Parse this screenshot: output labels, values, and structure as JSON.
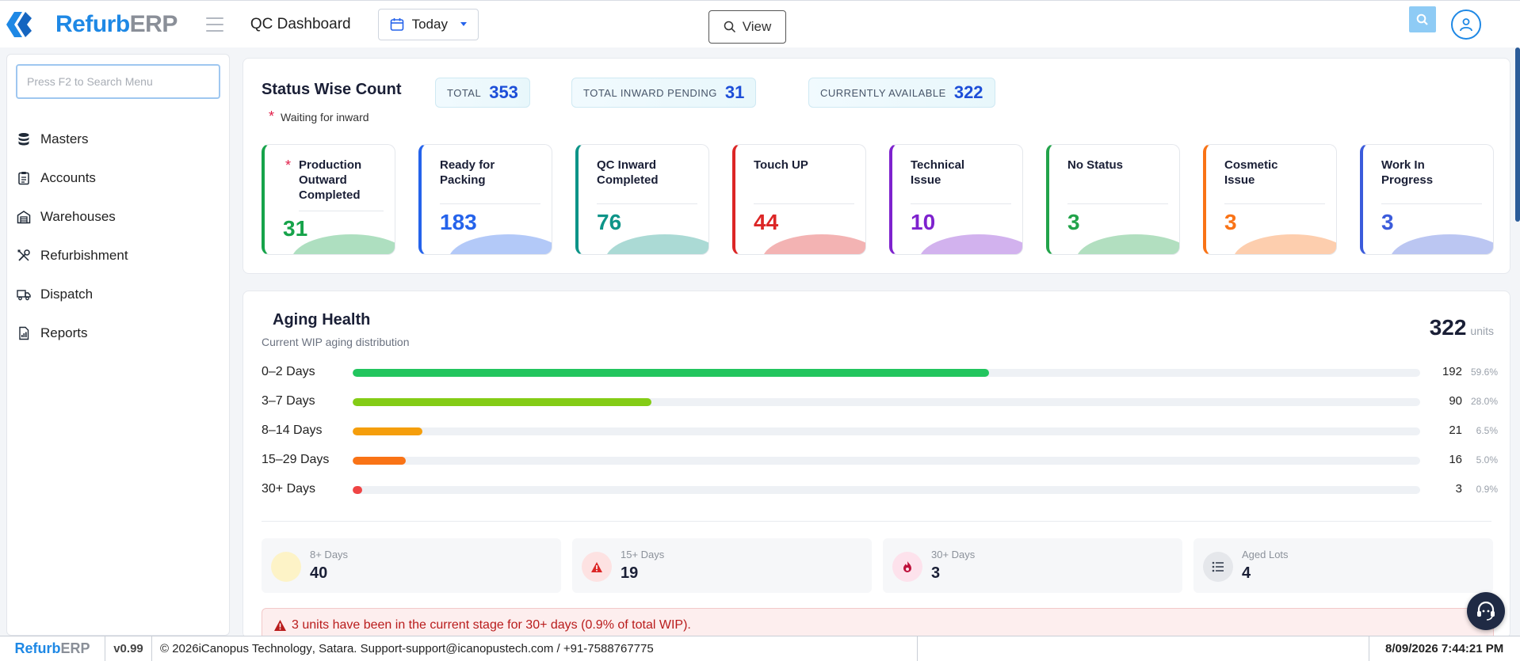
{
  "brand": {
    "part1": "Refurb",
    "part2": "ERP"
  },
  "header": {
    "page_title": "QC Dashboard",
    "date_filter": "Today",
    "view_label": "View"
  },
  "sidebar": {
    "search_placeholder": "Press F2 to Search Menu",
    "items": [
      {
        "label": "Masters",
        "icon": "database-icon"
      },
      {
        "label": "Accounts",
        "icon": "clipboard-icon"
      },
      {
        "label": "Warehouses",
        "icon": "warehouse-icon"
      },
      {
        "label": "Refurbishment",
        "icon": "tools-icon"
      },
      {
        "label": "Dispatch",
        "icon": "truck-icon"
      },
      {
        "label": "Reports",
        "icon": "report-icon"
      }
    ]
  },
  "status": {
    "title": "Status Wise Count",
    "waiting_note": "Waiting for inward",
    "pills": [
      {
        "label": "TOTAL",
        "value": "353"
      },
      {
        "label": "TOTAL INWARD PENDING",
        "value": "31"
      },
      {
        "label": "CURRENTLY AVAILABLE",
        "value": "322"
      }
    ],
    "cards": [
      {
        "label": "Production Outward Completed",
        "value": "31",
        "color": "#16a34a",
        "required": true
      },
      {
        "label": "Ready for Packing",
        "value": "183",
        "color": "#2563eb"
      },
      {
        "label": "QC Inward Completed",
        "value": "76",
        "color": "#0d9488"
      },
      {
        "label": "Touch UP",
        "value": "44",
        "color": "#dc2626"
      },
      {
        "label": "Technical Issue",
        "value": "10",
        "color": "#7e22ce"
      },
      {
        "label": "No Status",
        "value": "3",
        "color": "#22a34a"
      },
      {
        "label": "Cosmetic Issue",
        "value": "3",
        "color": "#f97316"
      },
      {
        "label": "Work In Progress",
        "value": "3",
        "color": "#3b5bdb"
      }
    ]
  },
  "aging": {
    "title": "Aging Health",
    "subtitle": "Current WIP aging distribution",
    "total": "322",
    "total_unit": "units",
    "rows": [
      {
        "label": "0–2 Days",
        "count": "192",
        "pct": "59.6%",
        "fraction": 0.596,
        "color": "#22c55e"
      },
      {
        "label": "3–7 Days",
        "count": "90",
        "pct": "28.0%",
        "fraction": 0.28,
        "color": "#84cc16"
      },
      {
        "label": "8–14 Days",
        "count": "21",
        "pct": "6.5%",
        "fraction": 0.065,
        "color": "#f59e0b"
      },
      {
        "label": "15–29 Days",
        "count": "16",
        "pct": "5.0%",
        "fraction": 0.05,
        "color": "#f97316"
      },
      {
        "label": "30+ Days",
        "count": "3",
        "pct": "0.9%",
        "fraction": 0.009,
        "color": "#ef4444"
      }
    ],
    "summary": [
      {
        "label": "8+ Days",
        "value": "40",
        "icon": "sun-circle-icon",
        "bg": "#fdf3c7"
      },
      {
        "label": "15+ Days",
        "value": "19",
        "icon": "warning-icon",
        "bg": "#fde2e2"
      },
      {
        "label": "30+ Days",
        "value": "3",
        "icon": "fire-icon",
        "bg": "#fde2ec"
      },
      {
        "label": "Aged Lots",
        "value": "4",
        "icon": "list-icon",
        "bg": "#e5e7eb"
      }
    ],
    "alert": "3 units have been in the current stage for 30+ days (0.9% of total WIP)."
  },
  "footer": {
    "version": "v0.99",
    "copyright_prefix": "© 2026 ",
    "company": "iCanopus Technology",
    "copyright_rest": ", Satara. Support-",
    "support_email": "support@icanopustech.com",
    "phone": " / +91-7588767775",
    "datetime": "8/09/2026 7:44:21 PM"
  }
}
